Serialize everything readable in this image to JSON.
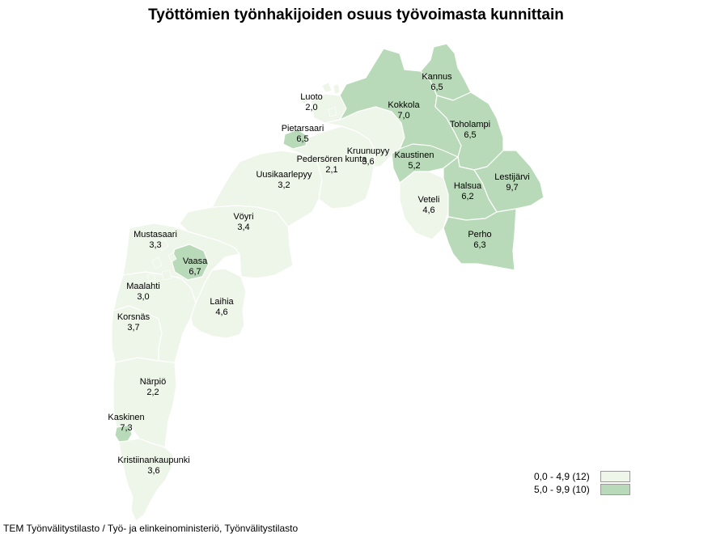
{
  "title": "Työttömien työnhakijoiden osuus työvoimasta kunnittain",
  "source": "TEM Työnvälitystilasto / Työ- ja elinkeinoministeriö, Työnvälitystilasto",
  "colors": {
    "class_low": "#eef5e9",
    "class_high": "#b9dab9",
    "border": "#ffffff"
  },
  "legend": [
    {
      "label": "0,0 - 4,9 (12)",
      "class": "low"
    },
    {
      "label": "5,0 - 9,9 (10)",
      "class": "high"
    }
  ],
  "municipalities": [
    {
      "key": "luoto",
      "name": "Luoto",
      "value": "2,0",
      "class": "low"
    },
    {
      "key": "pietarsaari",
      "name": "Pietarsaari",
      "value": "6,5",
      "class": "high"
    },
    {
      "key": "pedersoren_kunta",
      "name": "Pedersören kunta",
      "value": "2,1",
      "class": "low"
    },
    {
      "key": "kruunupyy",
      "name": "Kruunupyy",
      "value": "3,6",
      "class": "low"
    },
    {
      "key": "uusikaarlepyy",
      "name": "Uusikaarlepyy",
      "value": "3,2",
      "class": "low"
    },
    {
      "key": "voyri",
      "name": "Vöyri",
      "value": "3,4",
      "class": "low"
    },
    {
      "key": "mustasaari",
      "name": "Mustasaari",
      "value": "3,3",
      "class": "low"
    },
    {
      "key": "vaasa",
      "name": "Vaasa",
      "value": "6,7",
      "class": "high"
    },
    {
      "key": "maalahti",
      "name": "Maalahti",
      "value": "3,0",
      "class": "low"
    },
    {
      "key": "laihia",
      "name": "Laihia",
      "value": "4,6",
      "class": "low"
    },
    {
      "key": "korsnas",
      "name": "Korsnäs",
      "value": "3,7",
      "class": "low"
    },
    {
      "key": "narpio",
      "name": "Närpiö",
      "value": "2,2",
      "class": "low"
    },
    {
      "key": "kaskinen",
      "name": "Kaskinen",
      "value": "7,3",
      "class": "high"
    },
    {
      "key": "kristiinankaupunki",
      "name": "Kristiinankaupunki",
      "value": "3,6",
      "class": "low"
    },
    {
      "key": "kannus",
      "name": "Kannus",
      "value": "6,5",
      "class": "high"
    },
    {
      "key": "kokkola",
      "name": "Kokkola",
      "value": "7,0",
      "class": "high"
    },
    {
      "key": "toholampi",
      "name": "Toholampi",
      "value": "6,5",
      "class": "high"
    },
    {
      "key": "kaustinen",
      "name": "Kaustinen",
      "value": "5,2",
      "class": "high"
    },
    {
      "key": "veteli",
      "name": "Veteli",
      "value": "4,6",
      "class": "low"
    },
    {
      "key": "halsua",
      "name": "Halsua",
      "value": "6,2",
      "class": "high"
    },
    {
      "key": "lestijarvi",
      "name": "Lestijärvi",
      "value": "9,7",
      "class": "high"
    },
    {
      "key": "perho",
      "name": "Perho",
      "value": "6,3",
      "class": "high"
    }
  ]
}
